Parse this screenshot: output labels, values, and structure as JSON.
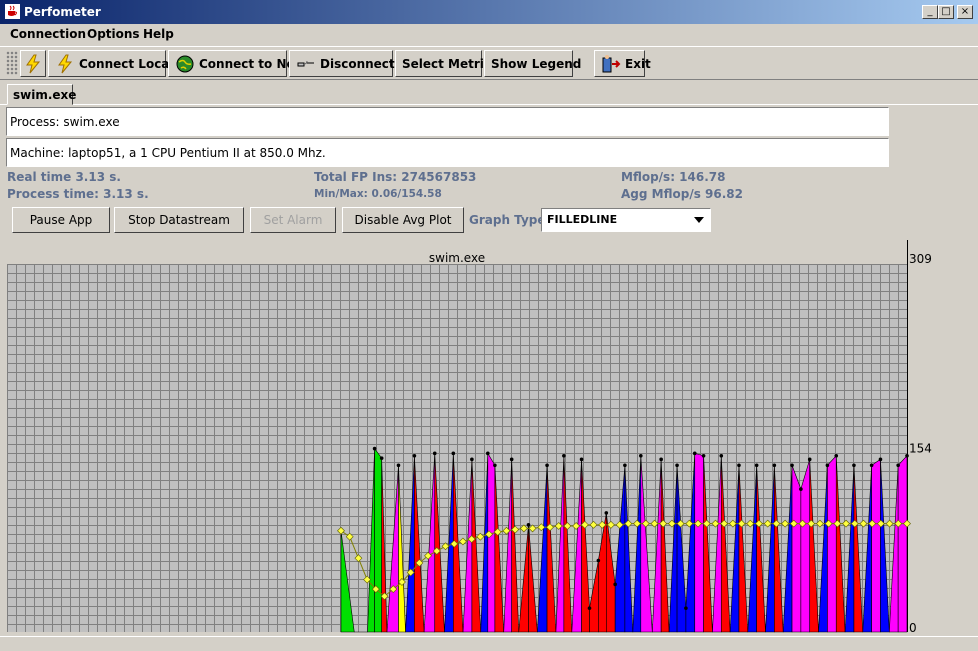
{
  "window": {
    "title": "Perfometer"
  },
  "menu": {
    "connection": "Connection",
    "options": "Options",
    "help": "Help"
  },
  "toolbar": {
    "connect_local": "Connect Local",
    "connect_net": "Connect to Net",
    "disconnect": "Disconnect",
    "select_metric": "Select Metric",
    "show_legend": "Show Legend",
    "exit": "Exit"
  },
  "tab": {
    "label": "swim.exe"
  },
  "info": {
    "process": "Process: swim.exe",
    "machine": "Machine: laptop51, a 1 CPU Pentium II at 850.0 Mhz."
  },
  "stats": {
    "real_time": "Real time  3.13  s.",
    "process_time": "Process time:  3.13  s.",
    "total_fp": "Total FP Ins:  274567853",
    "minmax": "Min/Max:  0.06/154.58",
    "mflops": "Mflop/s:  146.78",
    "agg_mflops": "Agg Mflop/s  96.82"
  },
  "controls": {
    "pause": "Pause App",
    "stop": "Stop Datastream",
    "set_alarm": "Set Alarm",
    "disable_avg": "Disable Avg Plot",
    "graph_type_label": "Graph Type:",
    "graph_type_value": "FILLEDLINE"
  },
  "chart_data": {
    "type": "area",
    "title": "swim.exe",
    "ymax_label": "309",
    "ymid_label": "154",
    "ymin_label": "0",
    "ylim": [
      0,
      309
    ],
    "series": [
      {
        "name": "",
        "values": [
          85,
          0
        ],
        "color": "#00e000"
      },
      {
        "name": "",
        "values": [
          0,
          154,
          146,
          0
        ],
        "color": "#00e000"
      },
      {
        "name": "",
        "values": [
          0,
          62,
          0
        ],
        "color": "#ffff00"
      },
      {
        "name": "",
        "values": [
          0,
          140,
          0
        ],
        "color": "#ff00ff"
      },
      {
        "name": "",
        "values": [
          0,
          150,
          0
        ],
        "color": "#0000ff"
      }
    ],
    "instant": [
      85,
      84,
      44,
      30,
      24,
      20,
      0,
      0,
      0,
      0,
      0,
      154,
      146,
      0,
      0,
      0,
      140,
      0,
      148,
      0,
      0,
      0,
      150,
      0,
      0,
      150,
      0,
      0,
      145,
      0,
      0,
      150,
      140,
      0,
      0,
      0,
      145,
      0,
      0,
      0,
      0,
      0,
      0,
      0,
      0,
      140,
      0,
      0,
      0,
      0,
      0,
      140,
      0,
      0,
      0,
      140,
      0,
      0,
      0,
      0,
      0,
      0,
      0,
      0,
      0,
      0,
      0,
      0,
      0,
      0,
      0,
      0,
      0,
      0,
      0,
      0,
      145,
      0,
      0,
      0,
      0,
      0,
      0,
      0,
      0,
      0,
      0,
      0,
      0,
      0,
      0,
      0,
      0,
      0,
      0,
      0,
      0,
      0,
      0,
      0,
      0,
      0,
      0,
      0,
      0,
      0,
      0,
      0,
      0,
      0,
      148
    ],
    "peaks": [
      {
        "x": 0.0,
        "y": 85,
        "c": "#00e000"
      },
      {
        "x": 1.5,
        "y": 0,
        "c": "#00e000"
      },
      {
        "x": 3.0,
        "y": 0,
        "c": "#00e000"
      },
      {
        "x": 3.8,
        "y": 154,
        "c": "#00e000"
      },
      {
        "x": 4.6,
        "y": 146,
        "c": "#00e000"
      },
      {
        "x": 5.2,
        "y": 0,
        "c": "#ff0000"
      },
      {
        "x": 6.5,
        "y": 140,
        "c": "#ff00ff"
      },
      {
        "x": 7.3,
        "y": 0,
        "c": "#ffff00"
      },
      {
        "x": 8.3,
        "y": 148,
        "c": "#0000ff"
      },
      {
        "x": 9.4,
        "y": 0,
        "c": "#ff0000"
      },
      {
        "x": 10.6,
        "y": 150,
        "c": "#ff00ff"
      },
      {
        "x": 11.7,
        "y": 0,
        "c": "#ff0000"
      },
      {
        "x": 12.7,
        "y": 150,
        "c": "#0000ff"
      },
      {
        "x": 13.8,
        "y": 0,
        "c": "#ff0000"
      },
      {
        "x": 14.8,
        "y": 145,
        "c": "#ff00ff"
      },
      {
        "x": 15.8,
        "y": 0,
        "c": "#ff0000"
      },
      {
        "x": 16.6,
        "y": 150,
        "c": "#0000ff"
      },
      {
        "x": 17.4,
        "y": 140,
        "c": "#ff00ff"
      },
      {
        "x": 18.4,
        "y": 0,
        "c": "#ff0000"
      },
      {
        "x": 19.3,
        "y": 145,
        "c": "#ff00ff"
      },
      {
        "x": 20.1,
        "y": 0,
        "c": "#ff0000"
      },
      {
        "x": 21.2,
        "y": 90,
        "c": "#ff0000"
      },
      {
        "x": 22.2,
        "y": 0,
        "c": "#ff0000"
      },
      {
        "x": 23.3,
        "y": 140,
        "c": "#0000ff"
      },
      {
        "x": 24.3,
        "y": 0,
        "c": "#ff0000"
      },
      {
        "x": 25.2,
        "y": 148,
        "c": "#ff00ff"
      },
      {
        "x": 26.1,
        "y": 0,
        "c": "#ff0000"
      },
      {
        "x": 27.2,
        "y": 145,
        "c": "#ff00ff"
      },
      {
        "x": 28.1,
        "y": 20,
        "c": "#ff0000"
      },
      {
        "x": 29.1,
        "y": 60,
        "c": "#ff0000"
      },
      {
        "x": 30.0,
        "y": 100,
        "c": "#ff0000"
      },
      {
        "x": 31.0,
        "y": 40,
        "c": "#ff0000"
      },
      {
        "x": 32.1,
        "y": 140,
        "c": "#0000ff"
      },
      {
        "x": 33.0,
        "y": 0,
        "c": "#0000ff"
      },
      {
        "x": 33.9,
        "y": 148,
        "c": "#0000ff"
      },
      {
        "x": 35.2,
        "y": 0,
        "c": "#ff00ff"
      },
      {
        "x": 36.2,
        "y": 145,
        "c": "#ff00ff"
      },
      {
        "x": 37.1,
        "y": 0,
        "c": "#ff0000"
      },
      {
        "x": 38.0,
        "y": 140,
        "c": "#0000ff"
      },
      {
        "x": 39.0,
        "y": 20,
        "c": "#0000ff"
      },
      {
        "x": 40.0,
        "y": 150,
        "c": "#0000ff"
      },
      {
        "x": 41.0,
        "y": 148,
        "c": "#ff00ff"
      },
      {
        "x": 42.0,
        "y": 0,
        "c": "#ff0000"
      },
      {
        "x": 43.0,
        "y": 148,
        "c": "#ff00ff"
      },
      {
        "x": 44.0,
        "y": 0,
        "c": "#ff0000"
      },
      {
        "x": 45.0,
        "y": 140,
        "c": "#0000ff"
      },
      {
        "x": 46.0,
        "y": 0,
        "c": "#ff0000"
      },
      {
        "x": 47.0,
        "y": 140,
        "c": "#0000ff"
      },
      {
        "x": 48.0,
        "y": 0,
        "c": "#ff0000"
      },
      {
        "x": 49.0,
        "y": 140,
        "c": "#0000ff"
      },
      {
        "x": 50.0,
        "y": 0,
        "c": "#ff0000"
      },
      {
        "x": 51.0,
        "y": 140,
        "c": "#0000ff"
      },
      {
        "x": 52.0,
        "y": 120,
        "c": "#ff00ff"
      },
      {
        "x": 53.0,
        "y": 145,
        "c": "#ff00ff"
      },
      {
        "x": 54.0,
        "y": 0,
        "c": "#ff0000"
      },
      {
        "x": 55.0,
        "y": 140,
        "c": "#0000ff"
      },
      {
        "x": 56.0,
        "y": 148,
        "c": "#ff00ff"
      },
      {
        "x": 57.0,
        "y": 0,
        "c": "#ff0000"
      },
      {
        "x": 58.0,
        "y": 140,
        "c": "#0000ff"
      },
      {
        "x": 59.0,
        "y": 0,
        "c": "#ff0000"
      },
      {
        "x": 60.0,
        "y": 140,
        "c": "#0000ff"
      },
      {
        "x": 61.0,
        "y": 145,
        "c": "#ff00ff"
      },
      {
        "x": 62.0,
        "y": 0,
        "c": "#0000ff"
      },
      {
        "x": 63.0,
        "y": 140,
        "c": "#ff00ff"
      },
      {
        "x": 64.0,
        "y": 148,
        "c": "#ff00ff"
      }
    ],
    "avg": [
      85,
      80,
      62,
      44,
      36,
      30,
      36,
      42,
      50,
      58,
      64,
      68,
      72,
      74,
      76,
      78,
      80,
      82,
      84,
      85,
      86,
      87,
      87,
      88,
      88,
      89,
      89,
      89,
      90,
      90,
      90,
      90,
      90,
      91,
      91,
      91,
      91,
      91,
      91,
      91,
      91,
      91,
      91,
      91,
      91,
      91,
      91,
      91,
      91,
      91,
      91,
      91,
      91,
      91,
      91,
      91,
      91,
      91,
      91,
      91,
      91,
      91,
      91,
      91,
      91,
      91
    ],
    "colors": {
      "green": "#00e000",
      "yellow": "#ffff00",
      "magenta": "#ff00ff",
      "blue": "#0000ff",
      "red": "#ff0000",
      "avg_marker": "#ffff40",
      "grid": "#808080",
      "bg": "#c0c0c0"
    }
  }
}
